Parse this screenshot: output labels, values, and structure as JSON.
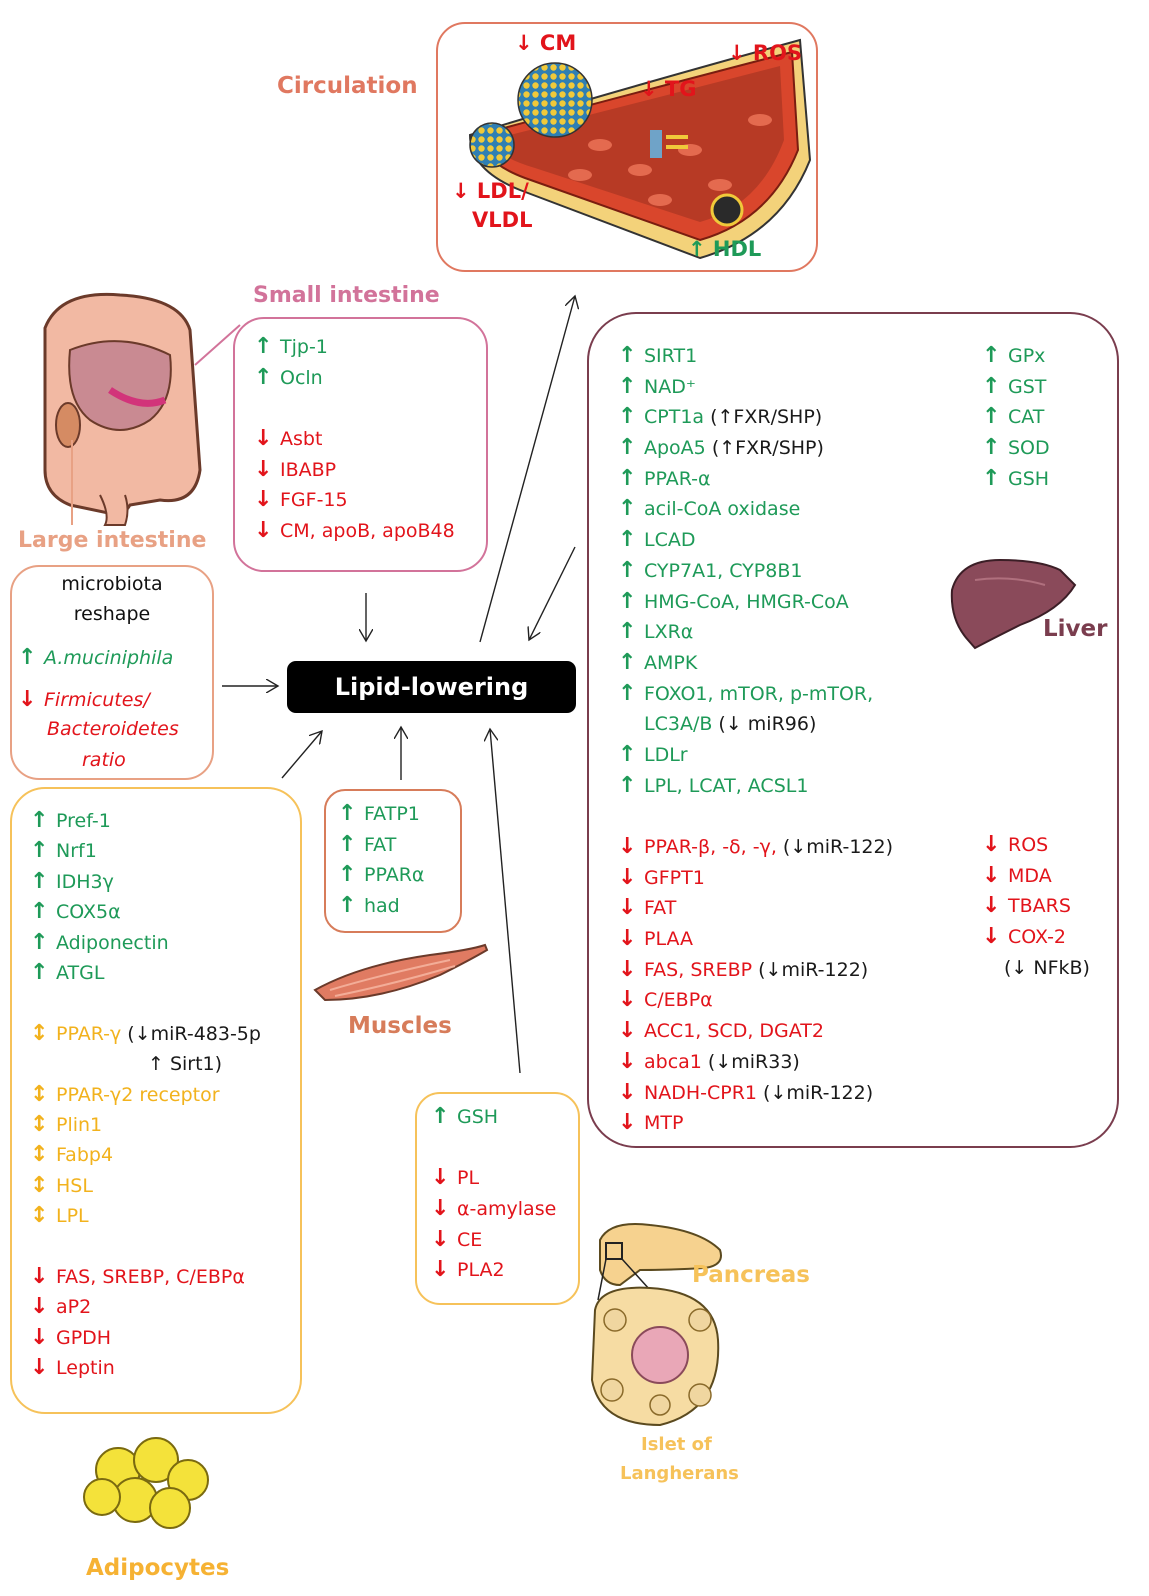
{
  "central": {
    "label": "Lipid-lowering"
  },
  "circulation": {
    "title": "Circulation",
    "cm": "↓ CM",
    "ros": "↓ ROS",
    "tg": "↓ TG",
    "ldl1": "↓ LDL/",
    "ldl2": "VLDL",
    "hdl": "↑ HDL"
  },
  "small_intestine": {
    "title": "Small intestine",
    "items": [
      {
        "arrow": "↑",
        "text": "Tjp-1"
      },
      {
        "arrow": "↑",
        "text": "Ocln"
      },
      {
        "arrow": "↓",
        "text": "Asbt"
      },
      {
        "arrow": "↓",
        "text": "IBABP"
      },
      {
        "arrow": "↓",
        "text": "FGF-15"
      },
      {
        "arrow": "↓",
        "text": "CM, apoB, apoB48"
      }
    ]
  },
  "large_intestine": {
    "title": "Large intestine",
    "line1": "microbiota",
    "line2": "reshape",
    "up_arrow": "↑",
    "up_text": "A.muciniphila",
    "down_arrow": "↓",
    "down_text1": "Firmicutes/",
    "down_text2": "Bacteroidetes",
    "down_text3": "ratio"
  },
  "adipocytes": {
    "title": "Adipocytes",
    "up": [
      {
        "arrow": "↑",
        "text": "Pref-1"
      },
      {
        "arrow": "↑",
        "text": "Nrf1"
      },
      {
        "arrow": "↑",
        "text": "IDH3γ"
      },
      {
        "arrow": "↑",
        "text": "COX5α"
      },
      {
        "arrow": "↑",
        "text": "Adiponectin"
      },
      {
        "arrow": "↑",
        "text": "ATGL"
      }
    ],
    "ppar_arrow": "↕",
    "ppar_text": "PPAR-γ",
    "ppar_note1": "(↓miR-483-5p",
    "ppar_note2": "↑ Sirt1)",
    "mod": [
      {
        "arrow": "↕",
        "text": "PPAR-γ2 receptor"
      },
      {
        "arrow": "↕",
        "text": "Plin1"
      },
      {
        "arrow": "↕",
        "text": "Fabp4"
      },
      {
        "arrow": "↕",
        "text": "HSL"
      },
      {
        "arrow": "↕",
        "text": "LPL"
      }
    ],
    "down": [
      {
        "arrow": "↓",
        "text": "FAS, SREBP, C/EBPα"
      },
      {
        "arrow": "↓",
        "text": "aP2"
      },
      {
        "arrow": "↓",
        "text": "GPDH"
      },
      {
        "arrow": "↓",
        "text": "Leptin"
      }
    ]
  },
  "muscles": {
    "title": "Muscles",
    "items": [
      {
        "arrow": "↑",
        "text": "FATP1"
      },
      {
        "arrow": "↑",
        "text": "FAT"
      },
      {
        "arrow": "↑",
        "text": "PPARα"
      },
      {
        "arrow": "↑",
        "text": "had"
      }
    ]
  },
  "pancreas": {
    "title": "Pancreas",
    "islet1": "Islet of",
    "islet2": "Langherans",
    "items_up": [
      {
        "arrow": "↑",
        "text": "GSH"
      }
    ],
    "items_down": [
      {
        "arrow": "↓",
        "text": "PL"
      },
      {
        "arrow": "↓",
        "text": "α-amylase"
      },
      {
        "arrow": "↓",
        "text": "CE"
      },
      {
        "arrow": "↓",
        "text": "PLA2"
      }
    ]
  },
  "liver": {
    "title": "Liver",
    "up": [
      {
        "arrow": "↑",
        "text": "SIRT1",
        "note": ""
      },
      {
        "arrow": "↑",
        "text": "NAD⁺",
        "note": ""
      },
      {
        "arrow": "↑",
        "text": "CPT1a",
        "note": " (↑FXR/SHP)"
      },
      {
        "arrow": "↑",
        "text": "ApoA5",
        "note": " (↑FXR/SHP)"
      },
      {
        "arrow": "↑",
        "text": "PPAR-α",
        "note": ""
      },
      {
        "arrow": "↑",
        "text": "acil-CoA oxidase",
        "note": ""
      },
      {
        "arrow": "↑",
        "text": "LCAD",
        "note": ""
      },
      {
        "arrow": "↑",
        "text": "CYP7A1, CYP8B1",
        "note": ""
      },
      {
        "arrow": "↑",
        "text": "HMG-CoA, HMGR-CoA",
        "note": ""
      },
      {
        "arrow": "↑",
        "text": "LXRα",
        "note": ""
      },
      {
        "arrow": "↑",
        "text": "AMPK",
        "note": ""
      },
      {
        "arrow": "↑",
        "text": "FOXO1, mTOR, p-mTOR,",
        "note": ""
      },
      {
        "arrow": "",
        "text": "LC3A/B",
        "note": " (↓ miR96)"
      },
      {
        "arrow": "↑",
        "text": "LDLr",
        "note": ""
      },
      {
        "arrow": "↑",
        "text": "LPL, LCAT, ACSL1",
        "note": ""
      }
    ],
    "down": [
      {
        "arrow": "↓",
        "text": "PPAR-β, -δ, -γ,",
        "note": " (↓miR-122)"
      },
      {
        "arrow": "↓",
        "text": "GFPT1",
        "note": ""
      },
      {
        "arrow": "↓",
        "text": "FAT",
        "note": ""
      },
      {
        "arrow": "↓",
        "text": "PLAA",
        "note": ""
      },
      {
        "arrow": "↓",
        "text": "FAS, SREBP",
        "note": " (↓miR-122)"
      },
      {
        "arrow": "↓",
        "text": "C/EBPα",
        "note": ""
      },
      {
        "arrow": "↓",
        "text": "ACC1, SCD, DGAT2",
        "note": ""
      },
      {
        "arrow": "↓",
        "text": "abca1",
        "note": " (↓miR33)"
      },
      {
        "arrow": "↓",
        "text": "NADH-CPR1",
        "note": " (↓miR-122)"
      },
      {
        "arrow": "↓",
        "text": "MTP",
        "note": ""
      }
    ],
    "anti_up": [
      {
        "arrow": "↑",
        "text": "GPx"
      },
      {
        "arrow": "↑",
        "text": "GST"
      },
      {
        "arrow": "↑",
        "text": "CAT"
      },
      {
        "arrow": "↑",
        "text": "SOD"
      },
      {
        "arrow": "↑",
        "text": "GSH"
      }
    ],
    "anti_down": [
      {
        "arrow": "↓",
        "text": "ROS"
      },
      {
        "arrow": "↓",
        "text": "MDA"
      },
      {
        "arrow": "↓",
        "text": "TBARS"
      },
      {
        "arrow": "↓",
        "text": "COX-2"
      }
    ],
    "nfkb": "(↓ NFkB)"
  },
  "colors": {
    "up": "#1e9a58",
    "down": "#e2141b",
    "modulated": "#f2b21d",
    "circulation_title": "#e07860",
    "small_intestine": "#d2739a",
    "large_intestine": "#e8a184",
    "adipocytes": "#f6c25a",
    "muscles": "#d77c5a",
    "pancreas": "#f6c25a",
    "liver": "#7a3d4e"
  }
}
